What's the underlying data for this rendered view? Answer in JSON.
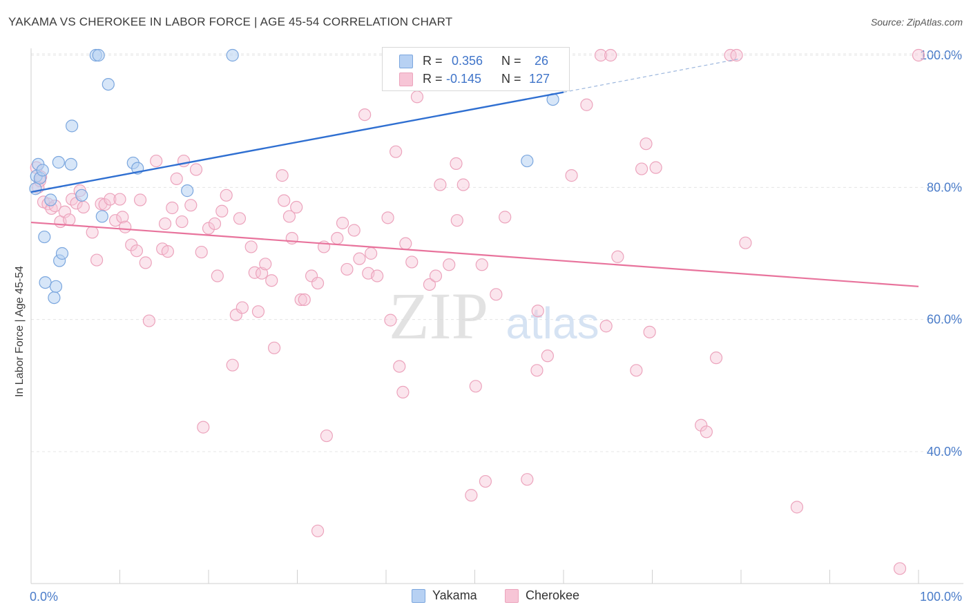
{
  "title": "YAKAMA VS CHEROKEE IN LABOR FORCE | AGE 45-54 CORRELATION CHART",
  "source": "Source: ZipAtlas.com",
  "watermark": {
    "zip": "ZIP",
    "atlas": "atlas"
  },
  "legend": {
    "yakama": {
      "r_label": "R =",
      "r_value": "0.356",
      "n_label": "N =",
      "n_value": "26"
    },
    "cherokee": {
      "r_label": "R =",
      "r_value": "-0.145",
      "n_label": "N =",
      "n_value": "127"
    }
  },
  "colors": {
    "yakama_fill": "#b7d1f3",
    "yakama_stroke": "#7aa6de",
    "yakama_line": "#2f6fd1",
    "cherokee_fill": "#f7c5d6",
    "cherokee_stroke": "#eca3bc",
    "cherokee_line": "#e8739c",
    "axis_text": "#4a7cc9",
    "grid": "#e4e4e4"
  },
  "chart_data": {
    "type": "scatter",
    "title": "YAKAMA VS CHEROKEE IN LABOR FORCE | AGE 45-54 CORRELATION CHART",
    "xlabel": "",
    "ylabel": "In Labor Force | Age 45-54",
    "xlim": [
      0,
      100
    ],
    "ylim": [
      20,
      102
    ],
    "x_tick_labels": [
      "0.0%",
      "100.0%"
    ],
    "y_ticks": [
      40,
      60,
      80,
      100
    ],
    "y_tick_labels": [
      "40.0%",
      "60.0%",
      "80.0%",
      "100.0%"
    ],
    "legend_position": "top-center",
    "series": [
      {
        "name": "Yakama",
        "r": 0.356,
        "n": 26,
        "trend": {
          "x0": 0,
          "y0": 79.3,
          "x1": 60,
          "y1": 94.4,
          "dashed_to_x": 80,
          "dashed_to_y": 99.5
        },
        "points": [
          [
            0.5,
            79.8
          ],
          [
            0.6,
            81.7
          ],
          [
            0.8,
            83.5
          ],
          [
            1.0,
            81.4
          ],
          [
            1.3,
            82.6
          ],
          [
            1.5,
            72.5
          ],
          [
            1.6,
            65.6
          ],
          [
            2.2,
            78.1
          ],
          [
            2.6,
            63.3
          ],
          [
            2.8,
            65.0
          ],
          [
            3.2,
            68.9
          ],
          [
            3.1,
            83.8
          ],
          [
            3.5,
            70.0
          ],
          [
            4.5,
            83.5
          ],
          [
            4.6,
            89.3
          ],
          [
            5.7,
            78.8
          ],
          [
            7.3,
            100.0
          ],
          [
            7.6,
            100.0
          ],
          [
            8.0,
            75.6
          ],
          [
            8.7,
            95.6
          ],
          [
            11.5,
            83.7
          ],
          [
            12.0,
            82.9
          ],
          [
            17.6,
            79.5
          ],
          [
            22.7,
            100.0
          ],
          [
            55.9,
            84.0
          ],
          [
            58.8,
            93.3
          ]
        ]
      },
      {
        "name": "Cherokee",
        "r": -0.145,
        "n": 127,
        "trend": {
          "x0": 0,
          "y0": 74.7,
          "x1": 100,
          "y1": 65.0
        },
        "points": [
          [
            0.6,
            83.0
          ],
          [
            0.8,
            80.0
          ],
          [
            1.0,
            81.0
          ],
          [
            1.1,
            81.6
          ],
          [
            1.4,
            77.8
          ],
          [
            1.9,
            77.5
          ],
          [
            2.3,
            76.8
          ],
          [
            2.7,
            77.2
          ],
          [
            3.3,
            74.8
          ],
          [
            3.8,
            76.3
          ],
          [
            4.3,
            75.1
          ],
          [
            4.6,
            78.2
          ],
          [
            5.1,
            77.6
          ],
          [
            5.5,
            79.5
          ],
          [
            5.9,
            77.0
          ],
          [
            6.9,
            73.2
          ],
          [
            7.4,
            69.0
          ],
          [
            7.9,
            77.5
          ],
          [
            8.3,
            77.4
          ],
          [
            8.9,
            78.2
          ],
          [
            9.5,
            75.0
          ],
          [
            10.0,
            78.2
          ],
          [
            10.3,
            75.5
          ],
          [
            10.6,
            74.0
          ],
          [
            11.3,
            71.3
          ],
          [
            11.9,
            70.4
          ],
          [
            12.3,
            78.1
          ],
          [
            12.9,
            68.6
          ],
          [
            13.3,
            59.8
          ],
          [
            14.1,
            84.0
          ],
          [
            14.8,
            70.7
          ],
          [
            15.1,
            74.5
          ],
          [
            15.4,
            70.3
          ],
          [
            15.9,
            76.9
          ],
          [
            16.4,
            81.3
          ],
          [
            17.0,
            74.8
          ],
          [
            17.2,
            84.0
          ],
          [
            18.0,
            77.3
          ],
          [
            18.6,
            82.7
          ],
          [
            19.2,
            70.2
          ],
          [
            19.4,
            43.7
          ],
          [
            20.0,
            73.8
          ],
          [
            20.7,
            74.5
          ],
          [
            21.0,
            66.6
          ],
          [
            21.5,
            76.4
          ],
          [
            22.0,
            78.8
          ],
          [
            22.7,
            53.1
          ],
          [
            23.1,
            60.7
          ],
          [
            23.5,
            75.3
          ],
          [
            23.8,
            61.8
          ],
          [
            24.8,
            71.0
          ],
          [
            25.2,
            67.1
          ],
          [
            25.6,
            61.2
          ],
          [
            26.0,
            67.0
          ],
          [
            26.4,
            68.4
          ],
          [
            27.1,
            65.9
          ],
          [
            27.4,
            55.7
          ],
          [
            28.3,
            81.8
          ],
          [
            28.5,
            78.0
          ],
          [
            29.1,
            75.6
          ],
          [
            29.4,
            72.3
          ],
          [
            29.9,
            77.0
          ],
          [
            30.4,
            63.0
          ],
          [
            30.8,
            63.0
          ],
          [
            31.6,
            66.6
          ],
          [
            32.3,
            65.5
          ],
          [
            32.3,
            28.0
          ],
          [
            33.0,
            71.0
          ],
          [
            33.3,
            42.4
          ],
          [
            34.5,
            72.3
          ],
          [
            35.1,
            74.6
          ],
          [
            35.6,
            67.6
          ],
          [
            36.4,
            73.5
          ],
          [
            37.0,
            69.2
          ],
          [
            37.6,
            91.0
          ],
          [
            38.0,
            67.0
          ],
          [
            38.3,
            70.0
          ],
          [
            39.0,
            66.6
          ],
          [
            40.2,
            75.4
          ],
          [
            40.5,
            59.9
          ],
          [
            41.1,
            85.4
          ],
          [
            41.5,
            52.9
          ],
          [
            41.9,
            49.0
          ],
          [
            42.2,
            71.5
          ],
          [
            42.9,
            68.7
          ],
          [
            43.5,
            93.7
          ],
          [
            44.9,
            65.3
          ],
          [
            45.6,
            66.6
          ],
          [
            46.1,
            80.4
          ],
          [
            47.1,
            68.3
          ],
          [
            47.9,
            83.6
          ],
          [
            48.0,
            75.0
          ],
          [
            48.7,
            80.4
          ],
          [
            49.6,
            33.4
          ],
          [
            50.1,
            49.9
          ],
          [
            50.8,
            68.3
          ],
          [
            51.2,
            35.5
          ],
          [
            52.4,
            63.8
          ],
          [
            53.4,
            75.5
          ],
          [
            55.9,
            35.8
          ],
          [
            57.0,
            52.3
          ],
          [
            57.1,
            61.3
          ],
          [
            58.2,
            54.5
          ],
          [
            60.9,
            81.8
          ],
          [
            62.6,
            92.5
          ],
          [
            64.2,
            100.0
          ],
          [
            64.8,
            59.0
          ],
          [
            65.3,
            100.0
          ],
          [
            66.1,
            69.5
          ],
          [
            68.2,
            52.3
          ],
          [
            68.8,
            82.8
          ],
          [
            69.3,
            86.6
          ],
          [
            69.7,
            58.1
          ],
          [
            70.4,
            83.0
          ],
          [
            75.5,
            44.0
          ],
          [
            76.1,
            43.0
          ],
          [
            77.2,
            54.2
          ],
          [
            78.8,
            100.0
          ],
          [
            79.5,
            100.0
          ],
          [
            80.5,
            71.6
          ],
          [
            86.3,
            31.6
          ],
          [
            97.9,
            22.3
          ],
          [
            100.0,
            100.0
          ]
        ]
      }
    ]
  },
  "bottom_legend": {
    "yakama": "Yakama",
    "cherokee": "Cherokee"
  }
}
